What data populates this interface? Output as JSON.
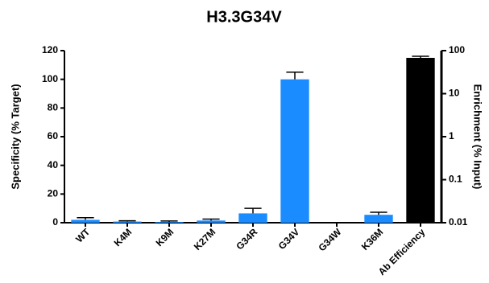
{
  "chart_data": {
    "type": "bar",
    "title": "H3.3G34V",
    "categories": [
      "WT",
      "K4M",
      "K9M",
      "K27M",
      "G34R",
      "G34V",
      "G34W",
      "K36M",
      "Ab Efficiency"
    ],
    "series": [
      {
        "color": "#1a8cff",
        "values": [
          2,
          0.8,
          0.5,
          1.5,
          6.5,
          100,
          0,
          5.5,
          null
        ],
        "errors": [
          1.5,
          0.5,
          0.7,
          1,
          3.5,
          5,
          0,
          1.8,
          null
        ]
      },
      {
        "color": "#000000",
        "axis": "y2",
        "values": [
          null,
          null,
          null,
          null,
          null,
          null,
          null,
          null,
          68
        ],
        "errors": [
          null,
          null,
          null,
          null,
          null,
          null,
          null,
          null,
          6
        ]
      }
    ],
    "ylabel": "Specificity (% Target)",
    "y2label": "Enrichment (% Input)",
    "ylim": [
      0,
      120
    ],
    "yticks": [
      0,
      20,
      40,
      60,
      80,
      100,
      120
    ],
    "y2lim": [
      0.01,
      100
    ],
    "y2ticks": [
      0.01,
      0.1,
      1,
      10,
      100
    ],
    "y2log": true
  }
}
